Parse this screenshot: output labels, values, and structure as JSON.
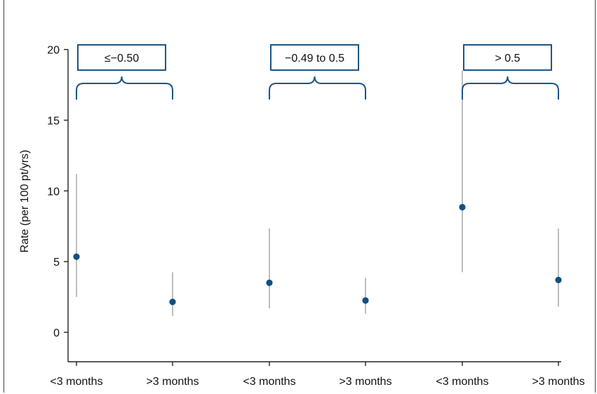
{
  "chart_data": {
    "type": "scatter",
    "subtype": "point-with-error-bars",
    "ylabel": "Rate (per 100 pt/yrs)",
    "xlabel": "",
    "ylim": [
      0,
      20
    ],
    "yticks": [
      0,
      5,
      10,
      15,
      20
    ],
    "categories": [
      "<3 months",
      ">3 months",
      "<3 months",
      ">3 months",
      "<3 months",
      ">3 months"
    ],
    "groups": [
      {
        "label": "≤−0.50",
        "categories": [
          0,
          1
        ]
      },
      {
        "label": "−0.49 to 0.5",
        "categories": [
          2,
          3
        ]
      },
      {
        "label": "> 0.5",
        "categories": [
          4,
          5
        ]
      }
    ],
    "series": [
      {
        "values": [
          5.35,
          2.15,
          3.5,
          2.25,
          8.85,
          3.7
        ],
        "lower": [
          2.5,
          1.15,
          1.7,
          1.3,
          4.25,
          1.8
        ],
        "upper": [
          11.2,
          4.25,
          7.35,
          3.85,
          18.5,
          7.35
        ]
      }
    ],
    "grid": false,
    "colors": {
      "point": "#134f84",
      "errorbar": "#bdbdbd",
      "bracket": "#1c5589",
      "axis": "#222222"
    }
  }
}
